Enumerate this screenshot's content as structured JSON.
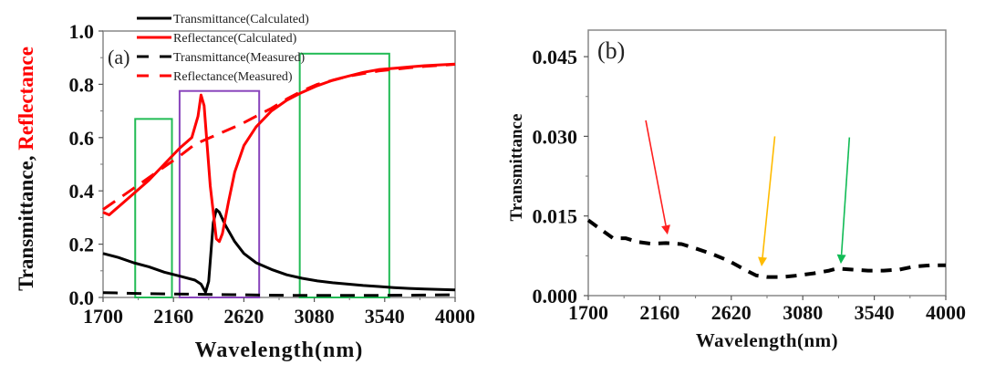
{
  "chart_data": [
    {
      "id": "a",
      "type": "line",
      "panel_label": "(a)",
      "xlabel": "Wavelength(nm)",
      "ylabel_parts": [
        {
          "text": "Transmittance, ",
          "color": "#111111"
        },
        {
          "text": "Reflectance",
          "color": "#ff0000"
        }
      ],
      "xlim": [
        1700,
        4000
      ],
      "ylim": [
        0.0,
        1.0
      ],
      "xticks": [
        1700,
        2160,
        2620,
        3080,
        3540,
        4000
      ],
      "xtick_labels": [
        "1700",
        "2160",
        "2620",
        "3080",
        "3540",
        "4000"
      ],
      "yticks": [
        0.0,
        0.2,
        0.4,
        0.6,
        0.8,
        1.0
      ],
      "ytick_labels": [
        "0.0",
        "0.2",
        "0.4",
        "0.6",
        "0.8",
        "1.0"
      ],
      "grid": false,
      "legend_position": "top-center",
      "series": [
        {
          "name": "Transmittance(Calculated)",
          "color": "#000000",
          "style": "solid",
          "x": [
            1700,
            1800,
            1900,
            2000,
            2100,
            2200,
            2300,
            2340,
            2370,
            2390,
            2420,
            2440,
            2460,
            2500,
            2560,
            2620,
            2700,
            2800,
            2900,
            3000,
            3100,
            3200,
            3300,
            3400,
            3500,
            3600,
            3700,
            3800,
            3900,
            4000
          ],
          "y": [
            0.165,
            0.15,
            0.13,
            0.115,
            0.095,
            0.08,
            0.065,
            0.05,
            0.02,
            0.06,
            0.28,
            0.33,
            0.32,
            0.27,
            0.21,
            0.165,
            0.13,
            0.105,
            0.085,
            0.072,
            0.062,
            0.055,
            0.05,
            0.045,
            0.041,
            0.037,
            0.034,
            0.032,
            0.03,
            0.028
          ]
        },
        {
          "name": "Reflectance(Calculated)",
          "color": "#ff0000",
          "style": "solid",
          "x": [
            1700,
            1740,
            1800,
            1900,
            2000,
            2100,
            2200,
            2280,
            2320,
            2340,
            2360,
            2400,
            2440,
            2460,
            2480,
            2520,
            2560,
            2620,
            2700,
            2800,
            2900,
            3000,
            3100,
            3200,
            3300,
            3400,
            3500,
            3600,
            3700,
            3800,
            3900,
            4000
          ],
          "y": [
            0.32,
            0.31,
            0.34,
            0.39,
            0.44,
            0.5,
            0.56,
            0.6,
            0.68,
            0.76,
            0.72,
            0.42,
            0.22,
            0.21,
            0.24,
            0.36,
            0.47,
            0.57,
            0.64,
            0.7,
            0.74,
            0.77,
            0.795,
            0.815,
            0.83,
            0.845,
            0.855,
            0.86,
            0.865,
            0.87,
            0.873,
            0.876
          ]
        },
        {
          "name": "Transmittance(Measured)",
          "color": "#000000",
          "style": "dashed",
          "x": [
            1700,
            2000,
            2300,
            2600,
            2900,
            3200,
            3500,
            3800,
            4000
          ],
          "y": [
            0.018,
            0.014,
            0.012,
            0.01,
            0.008,
            0.008,
            0.008,
            0.009,
            0.01
          ]
        },
        {
          "name": "Reflectance(Measured)",
          "color": "#ff0000",
          "style": "dashed",
          "x": [
            1700,
            1800,
            1900,
            2000,
            2100,
            2200,
            2300,
            2400,
            2500,
            2600,
            2700,
            2800,
            2900,
            3000,
            3100,
            3200,
            3300,
            3400,
            3500,
            3600,
            3700,
            3800,
            3900,
            4000
          ],
          "y": [
            0.33,
            0.37,
            0.41,
            0.45,
            0.49,
            0.53,
            0.575,
            0.6,
            0.625,
            0.65,
            0.68,
            0.71,
            0.745,
            0.775,
            0.8,
            0.815,
            0.83,
            0.84,
            0.85,
            0.856,
            0.862,
            0.867,
            0.871,
            0.875
          ]
        }
      ],
      "annotations": [
        {
          "type": "rectangle",
          "color": "#22bb55",
          "x_range": [
            1910,
            2150
          ],
          "y_range": [
            0.0,
            0.67
          ]
        },
        {
          "type": "rectangle",
          "color": "#8844bb",
          "x_range": [
            2200,
            2720
          ],
          "y_range": [
            0.0,
            0.775
          ]
        },
        {
          "type": "rectangle",
          "color": "#22bb55",
          "x_range": [
            2985,
            3570
          ],
          "y_range": [
            0.0,
            0.915
          ]
        }
      ]
    },
    {
      "id": "b",
      "type": "line",
      "panel_label": "(b)",
      "xlabel": "Wavelength(nm)",
      "ylabel": "Transmittance",
      "xlim": [
        1700,
        4000
      ],
      "ylim": [
        0.0,
        0.05
      ],
      "xticks": [
        1700,
        2160,
        2620,
        3080,
        3540,
        4000
      ],
      "xtick_labels": [
        "1700",
        "2160",
        "2620",
        "3080",
        "3540",
        "4000"
      ],
      "yticks": [
        0.0,
        0.015,
        0.03,
        0.045
      ],
      "ytick_labels": [
        "0.000",
        "0.015",
        "0.030",
        "0.045"
      ],
      "grid": false,
      "series": [
        {
          "name": "Transmittance(Measured)",
          "color": "#000000",
          "style": "dashed",
          "x": [
            1700,
            1780,
            1860,
            1940,
            2020,
            2100,
            2200,
            2300,
            2400,
            2500,
            2600,
            2700,
            2780,
            2850,
            2950,
            3050,
            3150,
            3250,
            3300,
            3400,
            3500,
            3600,
            3700,
            3800,
            3900,
            4000
          ],
          "y": [
            0.0142,
            0.0125,
            0.0108,
            0.0108,
            0.0101,
            0.0098,
            0.0099,
            0.0097,
            0.0088,
            0.0078,
            0.0066,
            0.005,
            0.0038,
            0.0035,
            0.0035,
            0.0038,
            0.0042,
            0.0047,
            0.0051,
            0.0049,
            0.0047,
            0.0047,
            0.0049,
            0.0055,
            0.0057,
            0.0057
          ]
        }
      ],
      "annotations": [
        {
          "type": "arrow",
          "color": "#ff2020",
          "from": [
            2070,
            0.033
          ],
          "to": [
            2210,
            0.0115
          ]
        },
        {
          "type": "arrow",
          "color": "#ffbb00",
          "from": [
            2900,
            0.03
          ],
          "to": [
            2815,
            0.0055
          ]
        },
        {
          "type": "arrow",
          "color": "#11bb55",
          "from": [
            3380,
            0.0298
          ],
          "to": [
            3325,
            0.006
          ]
        }
      ]
    }
  ]
}
